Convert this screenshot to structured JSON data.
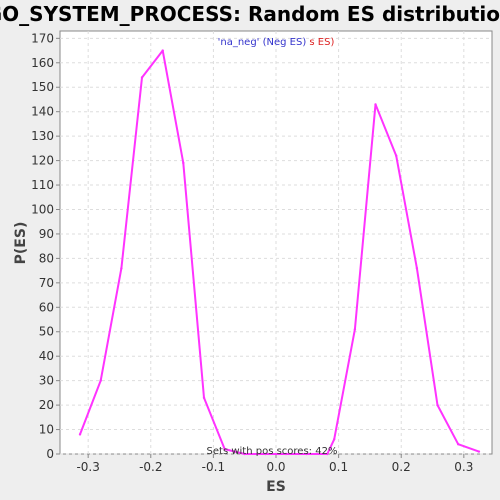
{
  "chart_data": {
    "type": "line",
    "title": "GO_SYSTEM_PROCESS: Random ES distribution",
    "xlabel": "ES",
    "ylabel": "P(ES)",
    "xlim": [
      -0.345,
      0.345
    ],
    "ylim": [
      0,
      173
    ],
    "xticks": [
      -0.3,
      -0.2,
      -0.1,
      0.0,
      0.1,
      0.2,
      0.3
    ],
    "xtick_labels": [
      "-0.3",
      "-0.2",
      "-0.1",
      "0.0",
      "0.1",
      "0.2",
      "0.3"
    ],
    "yticks": [
      0,
      10,
      20,
      30,
      40,
      50,
      60,
      70,
      80,
      90,
      100,
      110,
      120,
      130,
      140,
      150,
      160,
      170
    ],
    "ytick_labels": [
      "0",
      "10",
      "20",
      "30",
      "40",
      "50",
      "60",
      "70",
      "80",
      "90",
      "100",
      "110",
      "120",
      "130",
      "140",
      "150",
      "160",
      "170"
    ],
    "grid": true,
    "legend": {
      "placement": "top-center",
      "parts": [
        {
          "text": "'na_neg' (Neg ES)",
          "color": "#3333cc"
        },
        {
          "text": "s ES)",
          "color": "#dd2222"
        }
      ]
    },
    "annotation": "Sets with pos scores: 42%",
    "series": [
      {
        "color": "#ff33ff",
        "points": [
          [
            -0.313,
            8
          ],
          [
            -0.28,
            30
          ],
          [
            -0.247,
            76
          ],
          [
            -0.214,
            154
          ],
          [
            -0.181,
            165
          ],
          [
            -0.148,
            119
          ],
          [
            -0.115,
            23
          ],
          [
            -0.082,
            2
          ],
          [
            -0.05,
            0
          ],
          [
            -0.017,
            0
          ],
          [
            0.016,
            0
          ],
          [
            0.049,
            0
          ],
          [
            0.082,
            0
          ],
          [
            0.093,
            6
          ],
          [
            0.126,
            51
          ],
          [
            0.159,
            143
          ],
          [
            0.192,
            122
          ],
          [
            0.225,
            76
          ],
          [
            0.258,
            20
          ],
          [
            0.291,
            4
          ],
          [
            0.324,
            1
          ]
        ]
      }
    ]
  }
}
